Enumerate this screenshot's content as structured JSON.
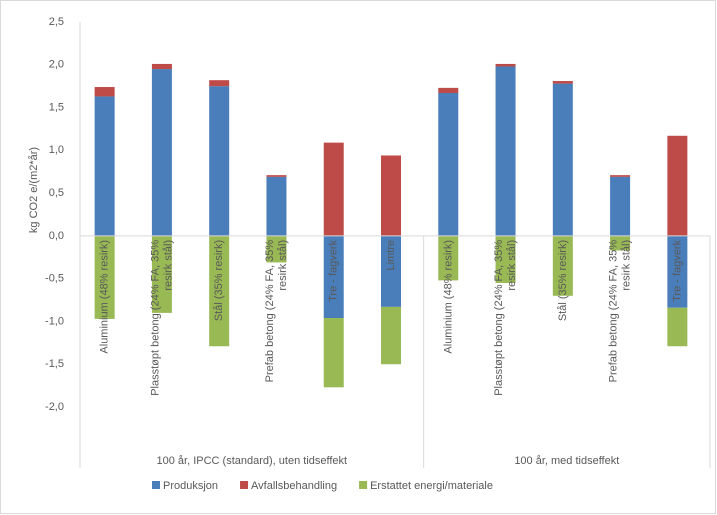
{
  "chart_data": {
    "type": "stacked-bar",
    "y_label": "kg CO2 e/(m2*år)",
    "groups": [
      {
        "label": "100 år, IPCC (standard), uten tidseffekt",
        "categories": [
          "Aluminium (48% resirk)",
          "Plasstøpt betong (24% FA, 35% resirk stål)",
          "Stål (35% resirk)",
          "Prefab betong (24% FA, 35% resirk stål)",
          "Tre - fagverk",
          "Limtre"
        ]
      },
      {
        "label": "100 år, med tidseffekt",
        "categories": [
          "Aluminium (48% resirk)",
          "Plasstøpt betong (24% FA, 35% resirk stål)",
          "Stål (35% resirk)",
          "Prefab betong (24% FA, 35% resirk stål)",
          "Tre - fagverk"
        ]
      }
    ],
    "series": [
      {
        "name": "Produksjon",
        "color": "#4a7ebb",
        "values": [
          [
            1.63,
            1.95,
            1.75,
            0.69,
            -0.96,
            -0.83
          ],
          [
            1.67,
            1.98,
            1.78,
            0.69,
            -0.84
          ]
        ]
      },
      {
        "name": "Avfallsbehandling",
        "color": "#be4b48",
        "values": [
          [
            0.11,
            0.06,
            0.07,
            0.02,
            1.09,
            0.94
          ],
          [
            0.06,
            0.03,
            0.03,
            0.02,
            1.17
          ]
        ]
      },
      {
        "name": "Erstattet energi/materiale",
        "color": "#98b954",
        "values": [
          [
            -0.97,
            -0.9,
            -1.29,
            -0.31,
            -0.81,
            -0.67
          ],
          [
            -0.52,
            -0.55,
            -0.7,
            -0.17,
            -0.45
          ]
        ]
      }
    ],
    "ylim": [
      -2,
      2.5
    ],
    "yticks": [
      {
        "value": -2,
        "label": "-2,0"
      },
      {
        "value": -1.5,
        "label": "-1,5"
      },
      {
        "value": -1,
        "label": "-1,0"
      },
      {
        "value": -0.5,
        "label": "-0,5"
      },
      {
        "value": 0,
        "label": "0,0"
      },
      {
        "value": 0.5,
        "label": "0,5"
      },
      {
        "value": 1,
        "label": "1,0"
      },
      {
        "value": 1.5,
        "label": "1,5"
      },
      {
        "value": 2,
        "label": "2,0"
      },
      {
        "value": 2.5,
        "label": "2,5"
      }
    ],
    "legend": "bottom"
  }
}
